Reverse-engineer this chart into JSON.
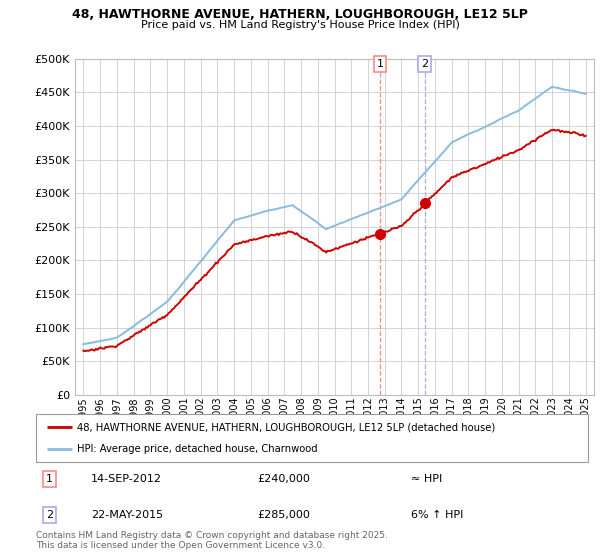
{
  "title_line1": "48, HAWTHORNE AVENUE, HATHERN, LOUGHBOROUGH, LE12 5LP",
  "title_line2": "Price paid vs. HM Land Registry's House Price Index (HPI)",
  "legend_label1": "48, HAWTHORNE AVENUE, HATHERN, LOUGHBOROUGH, LE12 5LP (detached house)",
  "legend_label2": "HPI: Average price, detached house, Charnwood",
  "annotation1_date": "14-SEP-2012",
  "annotation1_price": "£240,000",
  "annotation1_hpi": "≈ HPI",
  "annotation2_date": "22-MAY-2015",
  "annotation2_price": "£285,000",
  "annotation2_hpi": "6% ↑ HPI",
  "footer": "Contains HM Land Registry data © Crown copyright and database right 2025.\nThis data is licensed under the Open Government Licence v3.0.",
  "sale1_year": 2012.71,
  "sale1_price": 240000,
  "sale2_year": 2015.38,
  "sale2_price": 285000,
  "red_color": "#cc0000",
  "blue_color": "#88bbdd",
  "vline1_color": "#ff8888",
  "vline2_color": "#aaaaee",
  "background_color": "#ffffff",
  "plot_bg_color": "#ffffff",
  "grid_color": "#cccccc",
  "ylim": [
    0,
    500000
  ],
  "xlim_start": 1994.5,
  "xlim_end": 2025.5
}
